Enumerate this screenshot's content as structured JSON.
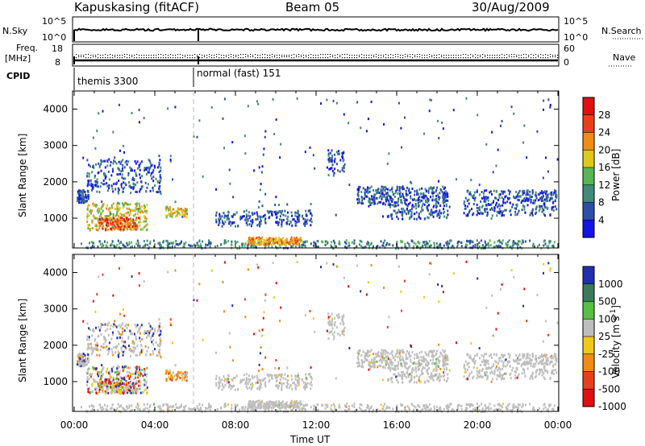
{
  "header": {
    "station": "Kapuskasing (fitACF)",
    "beam": "Beam 05",
    "date": "30/Aug/2009"
  },
  "status_panels": {
    "nsky_label": "N.Sky",
    "nsearch_label": "N.Search",
    "nsky_ticks": [
      "10^5",
      "10^0"
    ],
    "nsearch_ticks": [
      "10^5",
      "10^0"
    ],
    "freq_label_1": "Freq.",
    "freq_label_2": "[MHz]",
    "freq_ticks": [
      "18",
      "8"
    ],
    "nave_label": "Nave",
    "nave_ticks": [
      "60",
      "0"
    ],
    "cpid_label": "CPID",
    "cpid_segments": [
      {
        "label": "themis 3300",
        "start_hour": 0.0
      },
      {
        "label": "normal (fast) 151",
        "start_hour": 6.0
      }
    ]
  },
  "chart_data": [
    {
      "type": "heatmap",
      "quantity": "Power",
      "xlabel": "",
      "ylabel": "Slant Range [km]",
      "colorbar_label": "Power [dB]",
      "xlim_hours": [
        0,
        24
      ],
      "ylim_km": [
        180,
        4500
      ],
      "yticks": [
        1000,
        2000,
        3000,
        4000
      ],
      "colorbar_ticks": [
        "4",
        "8",
        "12",
        "16",
        "20",
        "24",
        "28"
      ],
      "colors": [
        "#1414e6",
        "#2c4fa8",
        "#3f8a7a",
        "#58b658",
        "#e0c81a",
        "#f08c14",
        "#e84018",
        "#e01010"
      ]
    },
    {
      "type": "heatmap",
      "quantity": "Velocity",
      "xlabel": "Time UT",
      "ylabel": "Slant Range [km]",
      "colorbar_label": "Velocity [m s^-1]",
      "xlim_hours": [
        0,
        24
      ],
      "ylim_km": [
        180,
        4500
      ],
      "yticks": [
        1000,
        2000,
        3000,
        4000
      ],
      "xticks": [
        "00:00",
        "04:00",
        "08:00",
        "12:00",
        "16:00",
        "20:00",
        "00:00"
      ],
      "colorbar_ticks": [
        "1000",
        "500",
        "100",
        "25",
        "-25",
        "-100",
        "-500",
        "-1000"
      ],
      "colors": [
        "#2030b0",
        "#3c7a5a",
        "#56c040",
        "#bebebe",
        "#f0c81a",
        "#f08c14",
        "#e84018",
        "#e01010"
      ]
    }
  ]
}
